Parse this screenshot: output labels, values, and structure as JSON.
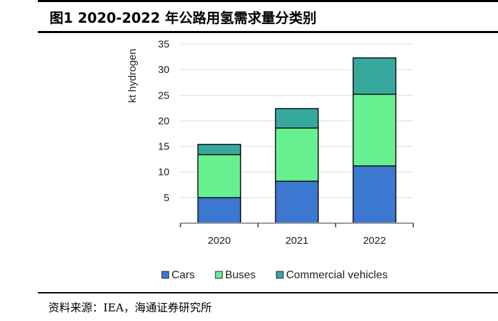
{
  "header": {
    "title": "图1   2020-2022 年公路用氢需求量分类别"
  },
  "source": "资料来源：IEA，海通证券研究所",
  "chart_data": {
    "type": "bar",
    "stacked": true,
    "title": "图1 2020-2022 年公路用氢需求量分类别",
    "xlabel": "",
    "ylabel": "kt hydrogen",
    "categories": [
      "2020",
      "2021",
      "2022"
    ],
    "ylim": [
      0,
      35
    ],
    "yticks": [
      5,
      10,
      15,
      20,
      25,
      30,
      35
    ],
    "grid": true,
    "legend_position": "bottom",
    "series": [
      {
        "name": "Cars",
        "color": "#3d78d0",
        "values": [
          5.0,
          8.2,
          11.2
        ]
      },
      {
        "name": "Buses",
        "color": "#66f090",
        "values": [
          8.4,
          10.4,
          14.0
        ]
      },
      {
        "name": "Commercial vehicles",
        "color": "#36a99c",
        "values": [
          2.0,
          3.8,
          7.1
        ]
      }
    ]
  }
}
